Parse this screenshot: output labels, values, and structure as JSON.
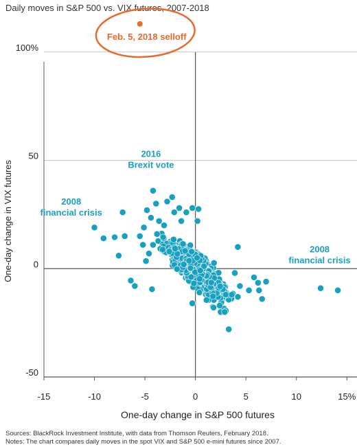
{
  "chart_data": {
    "type": "scatter",
    "title": "Daily moves in S&P 500 vs. VIX futures, 2007-2018",
    "xlabel": "One-day change in S&P 500 futures",
    "ylabel": "One-day change in VIX futures",
    "xlim": [
      -15,
      16
    ],
    "ylim": [
      -50,
      105
    ],
    "x_ticks": [
      "-15",
      "-10",
      "-5",
      "0",
      "5",
      "10",
      "15%"
    ],
    "y_ticks": [
      "-50",
      "0",
      "50",
      "100%"
    ],
    "grid": "horizontal",
    "point_color": "#17a0c0",
    "highlight_color": "#e8692b",
    "highlight_point": {
      "x": -5.5,
      "y": 113,
      "label": "Feb. 5, 2018 selloff"
    },
    "annotations": [
      {
        "text": [
          "2016",
          "Brexit vote"
        ],
        "x": -4.4,
        "y": 49
      },
      {
        "text": [
          "2008",
          "financial crisis"
        ],
        "x": -12.3,
        "y": 27
      },
      {
        "text": [
          "2008",
          "financial crisis"
        ],
        "x": 12.3,
        "y": 5
      }
    ],
    "points": [
      [
        -10,
        19
      ],
      [
        -9.1,
        14
      ],
      [
        -8,
        14.5
      ],
      [
        -7.6,
        6
      ],
      [
        -7,
        15
      ],
      [
        -7.2,
        26
      ],
      [
        -6.4,
        -5.5
      ],
      [
        -6,
        -8
      ],
      [
        -4.8,
        27
      ],
      [
        -4.4,
        23.5
      ],
      [
        -4.2,
        36
      ],
      [
        -3.9,
        30
      ],
      [
        -2.8,
        31
      ],
      [
        -2.3,
        33
      ],
      [
        -3.6,
        22
      ],
      [
        -3.2,
        14.5
      ],
      [
        -4.3,
        -9.5
      ],
      [
        -5.1,
        19
      ],
      [
        -5.5,
        15
      ],
      [
        -5.2,
        11
      ],
      [
        -4.6,
        7
      ],
      [
        -4.2,
        11
      ],
      [
        -4.9,
        3.5
      ],
      [
        -3.8,
        16
      ],
      [
        -3.1,
        20
      ],
      [
        -2.1,
        26
      ],
      [
        -1.6,
        28
      ],
      [
        -1.4,
        22
      ],
      [
        -0.9,
        26
      ],
      [
        -0.3,
        28
      ],
      [
        0.3,
        27.5
      ],
      [
        0.2,
        22
      ],
      [
        4.2,
        10
      ],
      [
        5.8,
        -4
      ],
      [
        6.2,
        -6.5
      ],
      [
        6.3,
        -10
      ],
      [
        7,
        -6
      ],
      [
        6.6,
        -14
      ],
      [
        5.3,
        -10
      ],
      [
        4.2,
        -13
      ],
      [
        3,
        -12
      ],
      [
        2.4,
        -17
      ],
      [
        2.5,
        -20
      ],
      [
        2.9,
        -20
      ],
      [
        1.8,
        -18
      ],
      [
        1.1,
        -14.5
      ],
      [
        0.4,
        -11
      ],
      [
        -0.3,
        -16
      ],
      [
        3.3,
        -28
      ],
      [
        3.6,
        -12
      ],
      [
        4.4,
        -8
      ],
      [
        3.9,
        -2
      ],
      [
        12.4,
        -9
      ],
      [
        14.1,
        -10
      ]
    ],
    "cluster": {
      "n": 1100,
      "seed": 7
    }
  },
  "source_note": "Sources: BlackRock Investment Institute, with data from Thomson Reuters, February 2018.",
  "notes": "Notes: The chart compares daily moves in the spot VIX and S&P 500 e-mini futures since 2007."
}
